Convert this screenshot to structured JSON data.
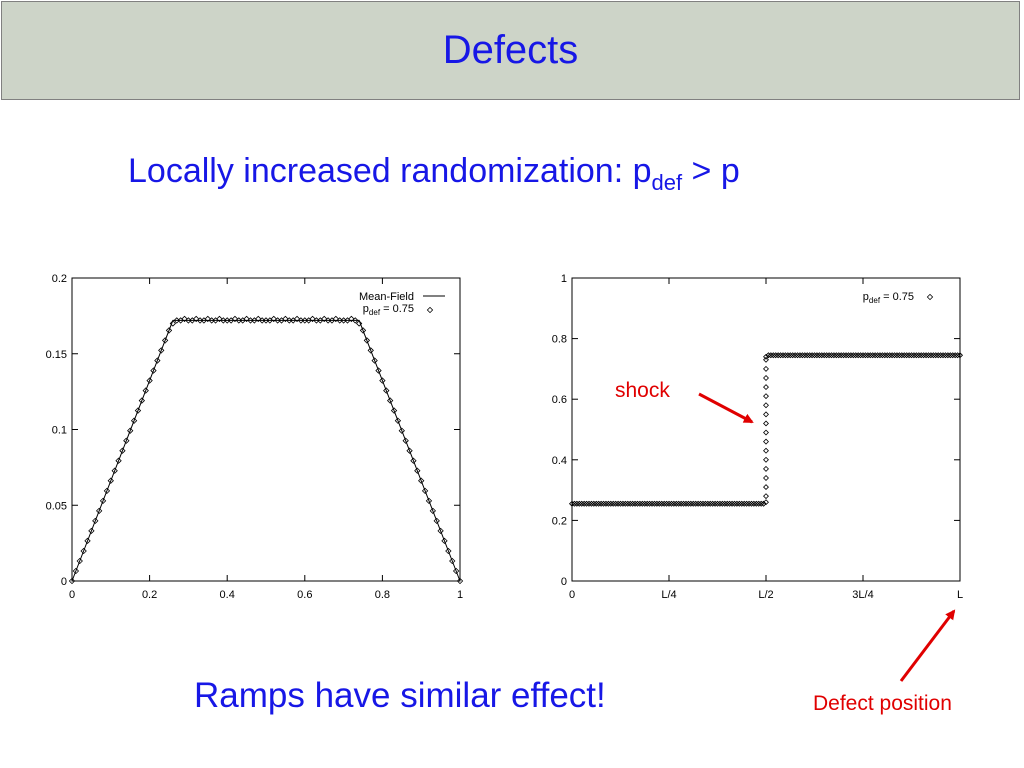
{
  "slide": {
    "title": "Defects",
    "subtitle_main": "Locally increased randomization: p",
    "subtitle_sub": "def",
    "subtitle_tail": " > p",
    "bottom_text": "Ramps have similar effect!",
    "shock_label": "shock",
    "defect_label": "Defect position",
    "accent_color": "#1717e6",
    "annotation_color": "#e00000",
    "header_background": "#cdd4c8"
  },
  "chart_data": [
    {
      "type": "line",
      "xlim": [
        0,
        1
      ],
      "ylim": [
        0,
        0.2
      ],
      "x_ticks": [
        0,
        0.2,
        0.4,
        0.6,
        0.8,
        1
      ],
      "x_tick_labels": [
        "0",
        "0.2",
        "0.4",
        "0.6",
        "0.8",
        "1"
      ],
      "y_ticks": [
        0,
        0.05,
        0.1,
        0.15,
        0.2
      ],
      "y_tick_labels": [
        "0",
        "0.05",
        "0.1",
        "0.15",
        "0.2"
      ],
      "legend_position": "top-right",
      "series": [
        {
          "name": "Mean-Field",
          "style": "line",
          "x": [
            0,
            0.26,
            0.74,
            1
          ],
          "y": [
            0,
            0.172,
            0.172,
            0
          ]
        },
        {
          "name_main": "p",
          "name_sub": "def",
          "name_tail": " = 0.75",
          "style": "diamond-markers",
          "x": [
            0.0,
            0.01,
            0.02,
            0.03,
            0.04,
            0.05,
            0.06,
            0.07,
            0.08,
            0.09,
            0.1,
            0.11,
            0.12,
            0.13,
            0.14,
            0.15,
            0.16,
            0.17,
            0.18,
            0.19,
            0.2,
            0.21,
            0.22,
            0.23,
            0.24,
            0.25,
            0.26,
            0.27,
            0.28,
            0.29,
            0.3,
            0.31,
            0.32,
            0.33,
            0.34,
            0.35,
            0.36,
            0.37,
            0.38,
            0.39,
            0.4,
            0.41,
            0.42,
            0.43,
            0.44,
            0.45,
            0.46,
            0.47,
            0.48,
            0.49,
            0.5,
            0.51,
            0.52,
            0.53,
            0.54,
            0.55,
            0.56,
            0.57,
            0.58,
            0.59,
            0.6,
            0.61,
            0.62,
            0.63,
            0.64,
            0.65,
            0.66,
            0.67,
            0.68,
            0.69,
            0.7,
            0.71,
            0.72,
            0.73,
            0.74,
            0.75,
            0.76,
            0.77,
            0.78,
            0.79,
            0.8,
            0.81,
            0.82,
            0.83,
            0.84,
            0.85,
            0.86,
            0.87,
            0.88,
            0.89,
            0.9,
            0.91,
            0.92,
            0.93,
            0.94,
            0.95,
            0.96,
            0.97,
            0.98,
            0.99,
            1.0
          ],
          "y": [
            0.0,
            0.0066,
            0.0132,
            0.0198,
            0.0265,
            0.0331,
            0.0397,
            0.0463,
            0.0529,
            0.0595,
            0.0662,
            0.0728,
            0.0794,
            0.086,
            0.0926,
            0.0992,
            0.1058,
            0.1125,
            0.1191,
            0.1257,
            0.1323,
            0.1389,
            0.1455,
            0.1522,
            0.1588,
            0.1654,
            0.17,
            0.172,
            0.172,
            0.173,
            0.172,
            0.172,
            0.173,
            0.172,
            0.172,
            0.173,
            0.172,
            0.172,
            0.173,
            0.172,
            0.172,
            0.172,
            0.173,
            0.172,
            0.172,
            0.173,
            0.172,
            0.172,
            0.173,
            0.172,
            0.172,
            0.172,
            0.173,
            0.172,
            0.172,
            0.173,
            0.172,
            0.172,
            0.173,
            0.172,
            0.172,
            0.172,
            0.173,
            0.172,
            0.172,
            0.173,
            0.172,
            0.172,
            0.173,
            0.172,
            0.172,
            0.172,
            0.173,
            0.172,
            0.17,
            0.1654,
            0.1588,
            0.1522,
            0.1455,
            0.1389,
            0.1323,
            0.1257,
            0.1191,
            0.1125,
            0.1058,
            0.0992,
            0.0926,
            0.086,
            0.0794,
            0.0728,
            0.0662,
            0.0595,
            0.0529,
            0.0463,
            0.0397,
            0.0331,
            0.0265,
            0.0198,
            0.0132,
            0.0066,
            0.0
          ]
        }
      ]
    },
    {
      "type": "scatter",
      "xlim": [
        0,
        1
      ],
      "ylim": [
        0,
        1
      ],
      "x_ticks": [
        0,
        0.25,
        0.5,
        0.75,
        1
      ],
      "x_tick_labels": [
        "0",
        "L/4",
        "L/2",
        "3L/4",
        "L"
      ],
      "y_ticks": [
        0,
        0.2,
        0.4,
        0.6,
        0.8,
        1
      ],
      "y_tick_labels": [
        "0",
        "0.2",
        "0.4",
        "0.6",
        "0.8",
        "1"
      ],
      "legend_position": "top-right",
      "series": [
        {
          "name_main": "p",
          "name_sub": "def",
          "name_tail": " = 0.75",
          "style": "diamond-markers",
          "plateau_low": 0.255,
          "plateau_high": 0.745,
          "step_position": 0.5,
          "step_points": [
            0.26,
            0.28,
            0.31,
            0.34,
            0.37,
            0.4,
            0.43,
            0.46,
            0.49,
            0.52,
            0.55,
            0.58,
            0.61,
            0.64,
            0.67,
            0.7,
            0.73,
            0.74
          ]
        }
      ]
    }
  ]
}
